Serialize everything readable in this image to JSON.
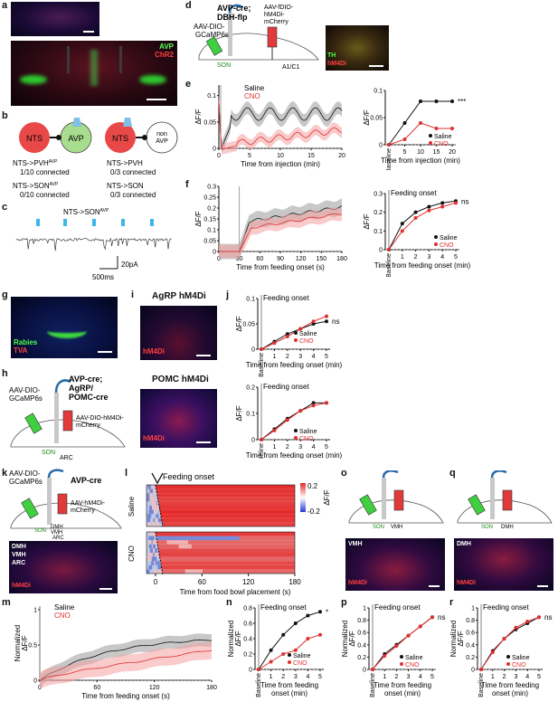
{
  "panel_letters": [
    "a",
    "b",
    "c",
    "d",
    "e",
    "f",
    "g",
    "h",
    "i",
    "j",
    "k",
    "l",
    "m",
    "n",
    "o",
    "p",
    "q",
    "r"
  ],
  "panel_a": {
    "avp": "AVP",
    "chr2": "ChR2"
  },
  "panel_b": {
    "nts": "NTS",
    "avp": "AVP",
    "non_avp_1": "non",
    "non_avp_2": "AVP",
    "lines": [
      {
        "main": "NTS->PVH",
        "sup": "AVP",
        "sub": "1/10 connected"
      },
      {
        "main": "NTS->PVH",
        "sup": "",
        "sub": "0/3 connected"
      },
      {
        "main": "NTS->SON",
        "sup": "AVP",
        "sub": "0/10 connected"
      },
      {
        "main": "NTS->SON",
        "sup": "",
        "sub": "0/3 connected"
      }
    ]
  },
  "panel_c": {
    "title": "NTS->SON",
    "title_sup": "AVP",
    "scale_current": "20pA",
    "scale_time": "500ms"
  },
  "panel_d": {
    "mouse": "AVP-cre;",
    "mouse2": "DBH-flp",
    "virus1_a": "AAV-DIO-",
    "virus1_b": "GCaMP6s",
    "virus2_a": "AAV-fDIO-",
    "virus2_b": "hM4Di-",
    "virus2_c": "mCherry",
    "son": "SON",
    "a1c1": "A1/C1",
    "th": "TH",
    "hm4di": "hM4Di"
  },
  "panel_e": {
    "legend_saline": "Saline",
    "legend_cno": "CNO",
    "ylabel": "ΔF/F",
    "xlabel": "Time from injection (min)",
    "yticks": [
      "0",
      "0.05",
      "0.1"
    ],
    "xticks": [
      "0",
      "5",
      "10",
      "15",
      "20"
    ],
    "right_xticks": [
      "Baseline",
      "5",
      "10",
      "15",
      "20"
    ],
    "right_yticks": [
      "0",
      "0.05",
      "0.1"
    ],
    "right_xlabel": "Time from injection (min)",
    "right_ylabel": "ΔF/F",
    "sig": "***",
    "chart_data": {
      "type": "line",
      "x": [
        "Baseline",
        5,
        10,
        15,
        20
      ],
      "series": [
        {
          "name": "Saline",
          "values": [
            0,
            0.04,
            0.08,
            0.08,
            0.08
          ]
        },
        {
          "name": "CNO",
          "values": [
            0,
            0.01,
            0.04,
            0.03,
            0.03
          ]
        }
      ],
      "ylim": [
        0,
        0.1
      ]
    }
  },
  "panel_f": {
    "ylabel": "ΔF/F",
    "xlabel": "Time from feeding onset (s)",
    "yticks": [
      "0",
      "0.05",
      "0.1",
      "0.15",
      "0.2",
      "0.25",
      "0.3"
    ],
    "xticks": [
      "0",
      "30",
      "60",
      "90",
      "120",
      "150",
      "180"
    ],
    "right_title": "Feeding onset",
    "right_xticks": [
      "Baseline",
      "1",
      "2",
      "3",
      "4",
      "5"
    ],
    "right_yticks": [
      "0",
      "0.1",
      "0.2",
      "0.3"
    ],
    "right_xlabel": "Time from feeding onset (min)",
    "right_ylabel": "ΔF/F",
    "sig": "ns",
    "chart_data": {
      "type": "line",
      "x": [
        "Baseline",
        1,
        2,
        3,
        4,
        5
      ],
      "series": [
        {
          "name": "Saline",
          "values": [
            0,
            0.14,
            0.2,
            0.23,
            0.25,
            0.26
          ]
        },
        {
          "name": "CNO",
          "values": [
            0,
            0.1,
            0.17,
            0.21,
            0.23,
            0.25
          ]
        }
      ],
      "ylim": [
        0,
        0.3
      ]
    }
  },
  "panel_g": {
    "rabies": "Rabies",
    "tva": "TVA"
  },
  "panel_h": {
    "mouse1": "AVP-cre;",
    "mouse2": "AgRP/",
    "mouse3": "POMC-cre",
    "virus1_a": "AAV-DIO-",
    "virus1_b": "GCaMP6s",
    "virus2_a": "AAV-DIO-hM4Di-",
    "virus2_b": "mCherry",
    "son": "SON",
    "arc": "ARC"
  },
  "panel_i": {
    "agrp": "AgRP hM4Di",
    "pomc": "POMC hM4Di",
    "hm4di": "hM4Di"
  },
  "panel_j": {
    "title": "Feeding onset",
    "ylabel": "ΔF/F",
    "xlabel": "Time from feeding onset (min)",
    "xticks": [
      "Baseline",
      "1",
      "2",
      "3",
      "4",
      "5"
    ],
    "yticks_top": [
      "0",
      "0.05",
      "0.1"
    ],
    "yticks_bottom": [
      "0",
      "0.1",
      "0.2"
    ],
    "sig": "ns",
    "saline": "Saline",
    "cno": "CNO",
    "chart_data": [
      {
        "type": "line",
        "x": [
          "Baseline",
          1,
          2,
          3,
          4,
          5
        ],
        "series": [
          {
            "name": "Saline",
            "values": [
              0,
              0.015,
              0.03,
              0.04,
              0.05,
              0.055
            ]
          },
          {
            "name": "CNO",
            "values": [
              0,
              0.012,
              0.025,
              0.04,
              0.055,
              0.065
            ]
          }
        ],
        "ylim": [
          0,
          0.1
        ]
      },
      {
        "type": "line",
        "x": [
          "Baseline",
          1,
          2,
          3,
          4,
          5
        ],
        "series": [
          {
            "name": "Saline",
            "values": [
              0,
              0.04,
              0.08,
              0.11,
              0.14,
              0.14
            ]
          },
          {
            "name": "CNO",
            "values": [
              0,
              0.035,
              0.075,
              0.11,
              0.13,
              0.14
            ]
          }
        ],
        "ylim": [
          0,
          0.2
        ]
      }
    ]
  },
  "panel_k": {
    "virus1_a": "AAV-DIO-",
    "virus1_b": "GCaMP6s",
    "mouse": "AVP-cre",
    "virus2_a": "AAV-hM4Di-",
    "virus2_b": "mCherry",
    "son": "SON",
    "dmh": "DMH",
    "vmh": "VMH",
    "arc": "ARC",
    "regions": [
      "DMH",
      "VMH",
      "ARC"
    ],
    "hm4di": "hM4Di"
  },
  "panel_l": {
    "feeding_onset": "Feeding onset",
    "saline": "Saline",
    "cno": "CNO",
    "xlabel": "Time from food bowl placement (s)",
    "xticks": [
      "0",
      "60",
      "120",
      "180"
    ],
    "cbar_top": "0.2",
    "cbar_bottom": "-0.2",
    "cbar_label": "ΔF/F"
  },
  "panel_m": {
    "ylabel1": "Normalized",
    "ylabel2": "ΔF/F",
    "xlabel": "Time from feeding onset (s)",
    "yticks": [
      "0",
      "0.5",
      "1"
    ],
    "xticks": [
      "0",
      "60",
      "120",
      "180"
    ],
    "saline": "Saline",
    "cno": "CNO"
  },
  "panel_n": {
    "title": "Feeding onset",
    "ylabel1": "Normalized",
    "ylabel2": "ΔF/F",
    "xlabel1": "Time from feeding",
    "xlabel2": "onset (min)",
    "xticks": [
      "Baseline",
      "1",
      "2",
      "3",
      "4",
      "5"
    ],
    "yticks": [
      "0",
      "0.2",
      "0.4",
      "0.6",
      "0.8"
    ],
    "sig": "*",
    "saline": "Saline",
    "cno": "CNO",
    "chart_data": {
      "type": "line",
      "x": [
        "Baseline",
        1,
        2,
        3,
        4,
        5
      ],
      "series": [
        {
          "name": "Saline",
          "values": [
            0,
            0.25,
            0.45,
            0.6,
            0.7,
            0.75
          ]
        },
        {
          "name": "CNO",
          "values": [
            0,
            0.1,
            0.2,
            0.25,
            0.4,
            0.45
          ]
        }
      ],
      "ylim": [
        0,
        0.8
      ]
    }
  },
  "panel_o": {
    "son": "SON",
    "vmh": "VMH",
    "region": "VMH",
    "hm4di": "hM4Di"
  },
  "panel_p": {
    "title": "Feeding onset",
    "ylabel1": "Normalized",
    "ylabel2": "ΔF/F",
    "xlabel1": "Time from feeding",
    "xlabel2": "onset (min)",
    "xticks": [
      "Baseline",
      "1",
      "2",
      "3",
      "4",
      "5"
    ],
    "yticks": [
      "0",
      "0.2",
      "0.4",
      "0.6",
      "0.8",
      "1"
    ],
    "sig": "ns",
    "saline": "Saline",
    "cno": "CNO",
    "chart_data": {
      "type": "line",
      "x": [
        "Baseline",
        1,
        2,
        3,
        4,
        5
      ],
      "series": [
        {
          "name": "Saline",
          "values": [
            0,
            0.25,
            0.4,
            0.55,
            0.7,
            0.85
          ]
        },
        {
          "name": "CNO",
          "values": [
            0,
            0.22,
            0.38,
            0.55,
            0.7,
            0.85
          ]
        }
      ],
      "ylim": [
        0,
        1
      ]
    }
  },
  "panel_q": {
    "son": "SON",
    "dmh": "DMH",
    "region": "DMH",
    "hm4di": "hM4Di"
  },
  "panel_r": {
    "title": "Feeding onset",
    "ylabel1": "Normalized",
    "ylabel2": "ΔF/F",
    "xlabel1": "Time from feeding",
    "xlabel2": "onset (min)",
    "xticks": [
      "Baseline",
      "1",
      "2",
      "3",
      "4",
      "5"
    ],
    "yticks": [
      "0",
      "0.2",
      "0.4",
      "0.6",
      "0.8",
      "1"
    ],
    "sig": "ns",
    "saline": "Saline",
    "cno": "CNO",
    "chart_data": {
      "type": "line",
      "x": [
        "Baseline",
        1,
        2,
        3,
        4,
        5
      ],
      "series": [
        {
          "name": "Saline",
          "values": [
            0,
            0.3,
            0.5,
            0.65,
            0.75,
            0.85
          ]
        },
        {
          "name": "CNO",
          "values": [
            0,
            0.28,
            0.5,
            0.68,
            0.78,
            0.85
          ]
        }
      ],
      "ylim": [
        0,
        1
      ]
    }
  },
  "colors": {
    "saline": "#111111",
    "cno": "#e03030",
    "gfp": "#33cc33",
    "mcherry": "#e0203a",
    "dapi": "#2233aa",
    "heat_red": "#e52828"
  }
}
